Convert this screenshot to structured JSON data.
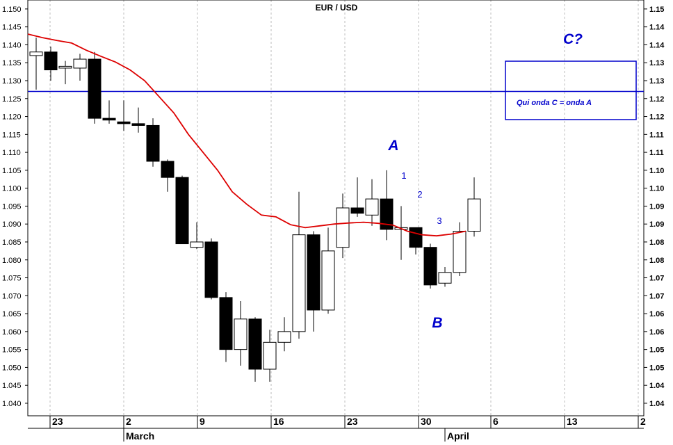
{
  "chart_data": {
    "type": "candlestick",
    "title": "EUR / USD",
    "y_range": [
      1.0365,
      1.1525
    ],
    "y_ticks_left": [
      "1.040",
      "1.045",
      "1.050",
      "1.055",
      "1.060",
      "1.065",
      "1.070",
      "1.075",
      "1.080",
      "1.085",
      "1.090",
      "1.095",
      "1.100",
      "1.105",
      "1.110",
      "1.115",
      "1.120",
      "1.125",
      "1.130",
      "1.135",
      "1.140",
      "1.145",
      "1.150"
    ],
    "y_ticks_right": [
      "1.04",
      "1.04",
      "1.05",
      "1.05",
      "1.06",
      "1.06",
      "1.07",
      "1.07",
      "1.08",
      "1.08",
      "1.09",
      "1.09",
      "1.10",
      "1.10",
      "1.11",
      "1.11",
      "1.12",
      "1.12",
      "1.13",
      "1.13",
      "1.14",
      "1.14",
      "1.15"
    ],
    "x_day_labels": [
      "23",
      "2",
      "9",
      "16",
      "23",
      "30",
      "6",
      "13",
      "2"
    ],
    "month_labels": [
      "March",
      "April"
    ],
    "candles": [
      {
        "o": 1.137,
        "h": 1.142,
        "l": 1.1275,
        "c": 1.138
      },
      {
        "o": 1.138,
        "h": 1.1395,
        "l": 1.13,
        "c": 1.133
      },
      {
        "o": 1.1335,
        "h": 1.1355,
        "l": 1.129,
        "c": 1.134
      },
      {
        "o": 1.1335,
        "h": 1.1375,
        "l": 1.13,
        "c": 1.136
      },
      {
        "o": 1.136,
        "h": 1.138,
        "l": 1.118,
        "c": 1.1195
      },
      {
        "o": 1.1195,
        "h": 1.1245,
        "l": 1.118,
        "c": 1.119
      },
      {
        "o": 1.1185,
        "h": 1.1245,
        "l": 1.116,
        "c": 1.118
      },
      {
        "o": 1.118,
        "h": 1.1225,
        "l": 1.1155,
        "c": 1.1175
      },
      {
        "o": 1.1175,
        "h": 1.1195,
        "l": 1.106,
        "c": 1.1075
      },
      {
        "o": 1.1075,
        "h": 1.108,
        "l": 1.099,
        "c": 1.103
      },
      {
        "o": 1.103,
        "h": 1.1035,
        "l": 1.0845,
        "c": 1.0845
      },
      {
        "o": 1.0835,
        "h": 1.0905,
        "l": 1.083,
        "c": 1.085
      },
      {
        "o": 1.085,
        "h": 1.086,
        "l": 1.069,
        "c": 1.0695
      },
      {
        "o": 1.0695,
        "h": 1.071,
        "l": 1.0515,
        "c": 1.055
      },
      {
        "o": 1.055,
        "h": 1.0685,
        "l": 1.0505,
        "c": 1.0635
      },
      {
        "o": 1.0635,
        "h": 1.064,
        "l": 1.046,
        "c": 1.0495
      },
      {
        "o": 1.0495,
        "h": 1.0605,
        "l": 1.046,
        "c": 1.057
      },
      {
        "o": 1.057,
        "h": 1.064,
        "l": 1.0545,
        "c": 1.06
      },
      {
        "o": 1.06,
        "h": 1.099,
        "l": 1.058,
        "c": 1.087
      },
      {
        "o": 1.087,
        "h": 1.088,
        "l": 1.06,
        "c": 1.066
      },
      {
        "o": 1.066,
        "h": 1.089,
        "l": 1.065,
        "c": 1.0825
      },
      {
        "o": 1.0835,
        "h": 1.0985,
        "l": 1.0805,
        "c": 1.0945
      },
      {
        "o": 1.0945,
        "h": 1.103,
        "l": 1.092,
        "c": 1.093
      },
      {
        "o": 1.0925,
        "h": 1.1025,
        "l": 1.0895,
        "c": 1.097
      },
      {
        "o": 1.097,
        "h": 1.105,
        "l": 1.0855,
        "c": 1.0885
      },
      {
        "o": 1.0885,
        "h": 1.095,
        "l": 1.08,
        "c": 1.089
      },
      {
        "o": 1.089,
        "h": 1.089,
        "l": 1.0815,
        "c": 1.0835
      },
      {
        "o": 1.0835,
        "h": 1.0845,
        "l": 1.072,
        "c": 1.073
      },
      {
        "o": 1.0735,
        "h": 1.078,
        "l": 1.0725,
        "c": 1.0765
      },
      {
        "o": 1.0765,
        "h": 1.0905,
        "l": 1.0755,
        "c": 1.088
      },
      {
        "o": 1.088,
        "h": 1.103,
        "l": 1.0865,
        "c": 1.097
      }
    ],
    "moving_average": [
      1.143,
      1.142,
      1.1412,
      1.1405,
      1.1385,
      1.1368,
      1.1352,
      1.133,
      1.13,
      1.1255,
      1.121,
      1.115,
      1.11,
      1.105,
      1.099,
      1.0955,
      1.0925,
      1.092,
      1.0898,
      1.089,
      1.0895,
      1.09,
      1.0903,
      1.0905,
      1.0902,
      1.0897,
      1.088,
      1.087,
      1.0867,
      1.0872,
      1.088
    ],
    "horizontal_line": 1.127,
    "annotations": {
      "wave_a": "A",
      "wave_b": "B",
      "wave_c": "C?",
      "sub_1": "1",
      "sub_2": "2",
      "sub_3": "3",
      "box_note": "Qui onda C = onda A"
    },
    "grid": "vertical dashed",
    "colors": {
      "ma_line": "#dd0000",
      "annotation": "#0000cc",
      "up": "#ffffff",
      "down": "#000000"
    }
  }
}
